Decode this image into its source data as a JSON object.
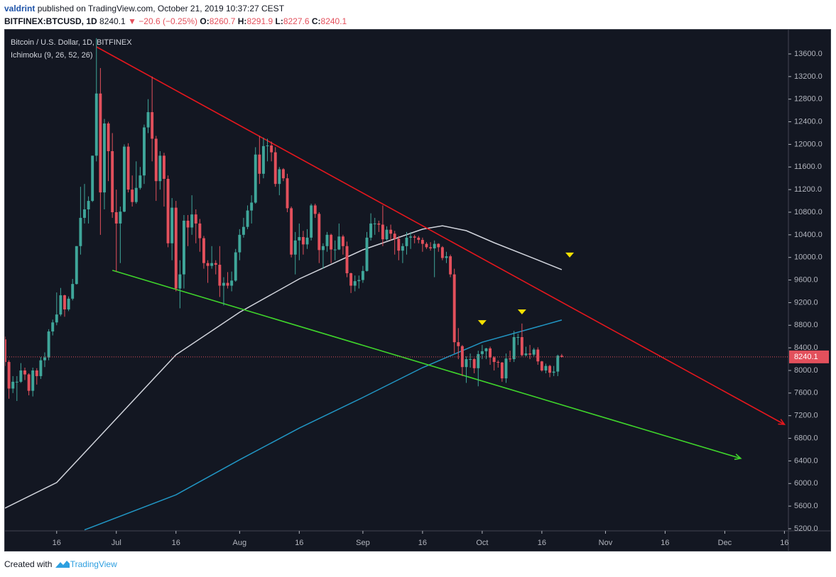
{
  "header": {
    "author": "valdrint",
    "published": "published on TradingView.com, October 21, 2019 10:37:27 CEST",
    "symbol": "BITFINEX:BTCUSD, 1D",
    "last": 8240.1,
    "arrow": "▼",
    "change": "−20.6 (−0.25%)",
    "ohlc": [
      {
        "label": "O:",
        "value": 8260.7
      },
      {
        "label": "H:",
        "value": 8291.9
      },
      {
        "label": "L:",
        "value": 8227.6
      },
      {
        "label": "C:",
        "value": 8240.1
      }
    ]
  },
  "chart_data": {
    "type": "candlestick",
    "series_name": "Bitcoin / U.S. Dollar, 1D, BITFINEX",
    "indicator": "Ichimoku (9, 26, 52, 26)",
    "up_color": "#3fa69a",
    "down_color": "#e3505c",
    "xlim": [
      "2019-06-03",
      "2019-12-17"
    ],
    "xticks": [
      {
        "value": "2019-06-16",
        "label": "16"
      },
      {
        "value": "2019-07-01",
        "label": "Jul"
      },
      {
        "value": "2019-07-16",
        "label": "16"
      },
      {
        "value": "2019-08-01",
        "label": "Aug"
      },
      {
        "value": "2019-08-16",
        "label": "16"
      },
      {
        "value": "2019-09-01",
        "label": "Sep"
      },
      {
        "value": "2019-09-16",
        "label": "16"
      },
      {
        "value": "2019-10-01",
        "label": "Oct"
      },
      {
        "value": "2019-10-16",
        "label": "16"
      },
      {
        "value": "2019-11-01",
        "label": "Nov"
      },
      {
        "value": "2019-11-16",
        "label": "16"
      },
      {
        "value": "2019-12-01",
        "label": "Dec"
      },
      {
        "value": "2019-12-16",
        "label": "16"
      }
    ],
    "ylim": [
      5162,
      14027
    ],
    "yticks": [
      {
        "value": 5200,
        "label": "5200.0"
      },
      {
        "value": 5600,
        "label": "5600.0"
      },
      {
        "value": 6000,
        "label": "6000.0"
      },
      {
        "value": 6400,
        "label": "6400.0"
      },
      {
        "value": 6800,
        "label": "6800.0"
      },
      {
        "value": 7200,
        "label": "7200.0"
      },
      {
        "value": 7600,
        "label": "7600.0"
      },
      {
        "value": 8000,
        "label": "8000.0"
      },
      {
        "value": 8400,
        "label": "8400.0"
      },
      {
        "value": 8800,
        "label": "8800.0"
      },
      {
        "value": 9200,
        "label": "9200.0"
      },
      {
        "value": 9600,
        "label": "9600.0"
      },
      {
        "value": 10000,
        "label": "10000.0"
      },
      {
        "value": 10400,
        "label": "10400.0"
      },
      {
        "value": 10800,
        "label": "10800.0"
      },
      {
        "value": 11200,
        "label": "11200.0"
      },
      {
        "value": 11600,
        "label": "11600.0"
      },
      {
        "value": 12000,
        "label": "12000.0"
      },
      {
        "value": 12400,
        "label": "12400.0"
      },
      {
        "value": 12800,
        "label": "12800.0"
      },
      {
        "value": 13200,
        "label": "13200.0"
      },
      {
        "value": 13600,
        "label": "13600.0"
      }
    ],
    "x": [
      "2019-06-03",
      "2019-06-04",
      "2019-06-05",
      "2019-06-06",
      "2019-06-07",
      "2019-06-08",
      "2019-06-09",
      "2019-06-10",
      "2019-06-11",
      "2019-06-12",
      "2019-06-13",
      "2019-06-14",
      "2019-06-15",
      "2019-06-16",
      "2019-06-17",
      "2019-06-18",
      "2019-06-19",
      "2019-06-20",
      "2019-06-21",
      "2019-06-22",
      "2019-06-23",
      "2019-06-24",
      "2019-06-25",
      "2019-06-26",
      "2019-06-27",
      "2019-06-28",
      "2019-06-29",
      "2019-06-30",
      "2019-07-01",
      "2019-07-02",
      "2019-07-03",
      "2019-07-04",
      "2019-07-05",
      "2019-07-06",
      "2019-07-07",
      "2019-07-08",
      "2019-07-09",
      "2019-07-10",
      "2019-07-11",
      "2019-07-12",
      "2019-07-13",
      "2019-07-14",
      "2019-07-15",
      "2019-07-16",
      "2019-07-17",
      "2019-07-18",
      "2019-07-19",
      "2019-07-20",
      "2019-07-21",
      "2019-07-22",
      "2019-07-23",
      "2019-07-24",
      "2019-07-25",
      "2019-07-26",
      "2019-07-27",
      "2019-07-28",
      "2019-07-29",
      "2019-07-30",
      "2019-07-31",
      "2019-08-01",
      "2019-08-02",
      "2019-08-03",
      "2019-08-04",
      "2019-08-05",
      "2019-08-06",
      "2019-08-07",
      "2019-08-08",
      "2019-08-09",
      "2019-08-10",
      "2019-08-11",
      "2019-08-12",
      "2019-08-13",
      "2019-08-14",
      "2019-08-15",
      "2019-08-16",
      "2019-08-17",
      "2019-08-18",
      "2019-08-19",
      "2019-08-20",
      "2019-08-21",
      "2019-08-22",
      "2019-08-23",
      "2019-08-24",
      "2019-08-25",
      "2019-08-26",
      "2019-08-27",
      "2019-08-28",
      "2019-08-29",
      "2019-08-30",
      "2019-08-31",
      "2019-09-01",
      "2019-09-02",
      "2019-09-03",
      "2019-09-04",
      "2019-09-05",
      "2019-09-06",
      "2019-09-07",
      "2019-09-08",
      "2019-09-09",
      "2019-09-10",
      "2019-09-11",
      "2019-09-12",
      "2019-09-13",
      "2019-09-14",
      "2019-09-15",
      "2019-09-16",
      "2019-09-17",
      "2019-09-18",
      "2019-09-19",
      "2019-09-20",
      "2019-09-21",
      "2019-09-22",
      "2019-09-23",
      "2019-09-24",
      "2019-09-25",
      "2019-09-26",
      "2019-09-27",
      "2019-09-28",
      "2019-09-29",
      "2019-09-30",
      "2019-10-01",
      "2019-10-02",
      "2019-10-03",
      "2019-10-04",
      "2019-10-05",
      "2019-10-06",
      "2019-10-07",
      "2019-10-08",
      "2019-10-09",
      "2019-10-10",
      "2019-10-11",
      "2019-10-12",
      "2019-10-13",
      "2019-10-14",
      "2019-10-15",
      "2019-10-16",
      "2019-10-17",
      "2019-10-18",
      "2019-10-19",
      "2019-10-20",
      "2019-10-21"
    ],
    "open": [
      8550,
      8150,
      7680,
      7800,
      7800,
      8000,
      7930,
      7640,
      8000,
      7900,
      8180,
      8230,
      8690,
      8850,
      8990,
      9330,
      9080,
      9270,
      9530,
      10200,
      10700,
      10850,
      11000,
      11800,
      12900,
      11150,
      12370,
      11880,
      10800,
      10600,
      10810,
      11960,
      11200,
      10980,
      11230,
      11450,
      12300,
      12570,
      12100,
      11350,
      11800,
      11390,
      10250,
      10880,
      9450,
      9700,
      10650,
      10530,
      10760,
      10600,
      10340,
      9900,
      9850,
      9900,
      9870,
      9500,
      9550,
      9500,
      9590,
      10090,
      10400,
      10540,
      10830,
      10970,
      11820,
      11480,
      11970,
      11980,
      11860,
      11300,
      11560,
      11400,
      10870,
      10050,
      10300,
      10360,
      10230,
      10350,
      10920,
      10770,
      10130,
      10200,
      10400,
      10140,
      10140,
      10370,
      10200,
      9720,
      9500,
      9580,
      9600,
      9760,
      10350,
      10600,
      10600,
      10580,
      10320,
      10490,
      10420,
      10330,
      10120,
      10200,
      10350,
      10370,
      10350,
      10310,
      10240,
      10180,
      10160,
      10240,
      10180,
      9990,
      10020,
      9700,
      8500,
      8430,
      8060,
      8200,
      8200,
      8040,
      8290,
      8340,
      8390,
      8230,
      8150,
      8140,
      7860,
      8210,
      8200,
      8590,
      8590,
      8270,
      8300,
      8280,
      8370,
      8160,
      8000,
      8080,
      7960,
      7980,
      8260.7
    ],
    "high": [
      8600,
      8180,
      7900,
      7900,
      8130,
      8050,
      7950,
      8050,
      8040,
      8240,
      8320,
      8730,
      8900,
      9380,
      9460,
      9340,
      9310,
      9620,
      10200,
      11250,
      11300,
      11080,
      11800,
      13880,
      13350,
      12450,
      12400,
      12200,
      11200,
      10900,
      12000,
      12020,
      11450,
      11700,
      11600,
      12350,
      12800,
      13200,
      12150,
      11880,
      11850,
      11450,
      11050,
      11000,
      9950,
      10750,
      10750,
      11100,
      10850,
      10680,
      10380,
      9950,
      10200,
      9950,
      10200,
      9650,
      9740,
      9750,
      10150,
      10500,
      10700,
      10920,
      11100,
      11950,
      12150,
      12120,
      12100,
      12050,
      11950,
      11600,
      11580,
      11480,
      10900,
      10450,
      10600,
      10470,
      10500,
      10950,
      10950,
      10800,
      10250,
      10450,
      10420,
      10300,
      10600,
      10400,
      10280,
      9730,
      9680,
      9680,
      9850,
      10450,
      10780,
      10700,
      10650,
      10920,
      10550,
      10580,
      10470,
      10380,
      10250,
      10450,
      10450,
      10400,
      10380,
      10350,
      10270,
      10270,
      10300,
      10250,
      10200,
      10100,
      10050,
      9800,
      8750,
      8450,
      8250,
      8300,
      8220,
      8350,
      8450,
      8400,
      8420,
      8250,
      8180,
      8150,
      8300,
      8350,
      8700,
      8650,
      8830,
      8420,
      8450,
      8400,
      8410,
      8170,
      8120,
      8100,
      8080,
      8280,
      8291.9
    ],
    "low": [
      8080,
      7500,
      7600,
      7460,
      7780,
      7830,
      7560,
      7540,
      7750,
      7850,
      8060,
      8180,
      8620,
      8800,
      8960,
      8950,
      9050,
      9240,
      9520,
      10050,
      10600,
      10600,
      10980,
      11700,
      10400,
      10850,
      11350,
      10700,
      9750,
      9900,
      10800,
      11150,
      10900,
      10950,
      11200,
      11300,
      12200,
      11700,
      11000,
      11200,
      10900,
      10180,
      9950,
      9400,
      9100,
      9450,
      10200,
      10400,
      10250,
      10100,
      9800,
      9550,
      9800,
      9700,
      9300,
      9150,
      9450,
      9400,
      9570,
      9950,
      10350,
      10500,
      10600,
      10950,
      11300,
      11400,
      11700,
      11700,
      11250,
      11100,
      11350,
      10800,
      10000,
      9700,
      9950,
      10050,
      10150,
      10300,
      10700,
      9900,
      9800,
      10100,
      9900,
      9950,
      10130,
      10050,
      9650,
      9370,
      9400,
      9450,
      9550,
      9750,
      10300,
      10400,
      10450,
      10200,
      10300,
      10300,
      10050,
      9950,
      9900,
      10050,
      10150,
      10250,
      10250,
      10100,
      10150,
      10120,
      9650,
      10100,
      9950,
      9900,
      9650,
      8300,
      8200,
      7900,
      7780,
      8050,
      7950,
      7720,
      8200,
      8200,
      8100,
      8000,
      8050,
      7800,
      7780,
      8150,
      8150,
      8450,
      8250,
      8250,
      8200,
      8250,
      8100,
      7980,
      7950,
      7880,
      7900,
      7900,
      8227.6
    ],
    "close": [
      8150,
      7680,
      7800,
      7800,
      8000,
      7930,
      7640,
      8000,
      7900,
      8180,
      8230,
      8690,
      8850,
      8990,
      9330,
      9080,
      9270,
      9530,
      10200,
      10700,
      10850,
      11000,
      11800,
      12900,
      11150,
      12370,
      11880,
      10800,
      10600,
      10810,
      11960,
      11200,
      10980,
      11230,
      11450,
      12300,
      12570,
      12100,
      11350,
      11800,
      11390,
      10250,
      10880,
      9450,
      9700,
      10650,
      10530,
      10760,
      10600,
      10340,
      9900,
      9850,
      9900,
      9870,
      9500,
      9550,
      9500,
      9590,
      10090,
      10400,
      10540,
      10830,
      10970,
      11820,
      11480,
      11970,
      11980,
      11860,
      11300,
      11560,
      11400,
      10870,
      10050,
      10300,
      10360,
      10230,
      10350,
      10920,
      10770,
      10130,
      10200,
      10400,
      10140,
      10140,
      10370,
      10200,
      9720,
      9500,
      9580,
      9600,
      9760,
      10350,
      10600,
      10600,
      10580,
      10320,
      10490,
      10420,
      10330,
      10120,
      10200,
      10350,
      10370,
      10350,
      10310,
      10240,
      10180,
      10160,
      10240,
      10180,
      9990,
      10020,
      9700,
      8500,
      8430,
      8060,
      8200,
      8200,
      8040,
      8290,
      8340,
      8390,
      8230,
      8150,
      8140,
      7860,
      8210,
      8200,
      8590,
      8590,
      8270,
      8300,
      8280,
      8370,
      8160,
      8000,
      8080,
      7960,
      7980,
      8260.7,
      8240.1
    ],
    "lines": [
      {
        "color": "#d1d4dc",
        "x": [
          "2019-06-03",
          "2019-06-16",
          "2019-07-01",
          "2019-07-16",
          "2019-08-01",
          "2019-08-16",
          "2019-09-01",
          "2019-09-16",
          "2019-09-21",
          "2019-09-27",
          "2019-10-04",
          "2019-10-13",
          "2019-10-21"
        ],
        "values": [
          5565,
          6017,
          7147,
          8277,
          9030,
          9620,
          10135,
          10500,
          10560,
          10474,
          10260,
          10010,
          9784
        ]
      },
      {
        "color": "#2196c4",
        "x": [
          "2019-06-23",
          "2019-07-16",
          "2019-08-01",
          "2019-08-16",
          "2019-09-01",
          "2019-09-16",
          "2019-10-01",
          "2019-10-21"
        ],
        "values": [
          5180,
          5800,
          6420,
          6980,
          7523,
          8050,
          8500,
          8892
        ]
      }
    ],
    "trendlines": [
      {
        "color": "#e5171d",
        "x": [
          "2019-06-26",
          "2019-12-16"
        ],
        "values": [
          13726,
          7046
        ]
      },
      {
        "color": "#3fd52b",
        "x": [
          "2019-06-30",
          "2019-12-05"
        ],
        "values": [
          9772,
          6444
        ]
      }
    ],
    "markers": {
      "color": "#f4e000",
      "x": [
        "2019-10-01",
        "2019-10-11",
        "2019-10-23"
      ],
      "values": [
        8840,
        9030,
        10035
      ]
    }
  },
  "footer": {
    "text": "Created with",
    "brand": "TradingView"
  }
}
